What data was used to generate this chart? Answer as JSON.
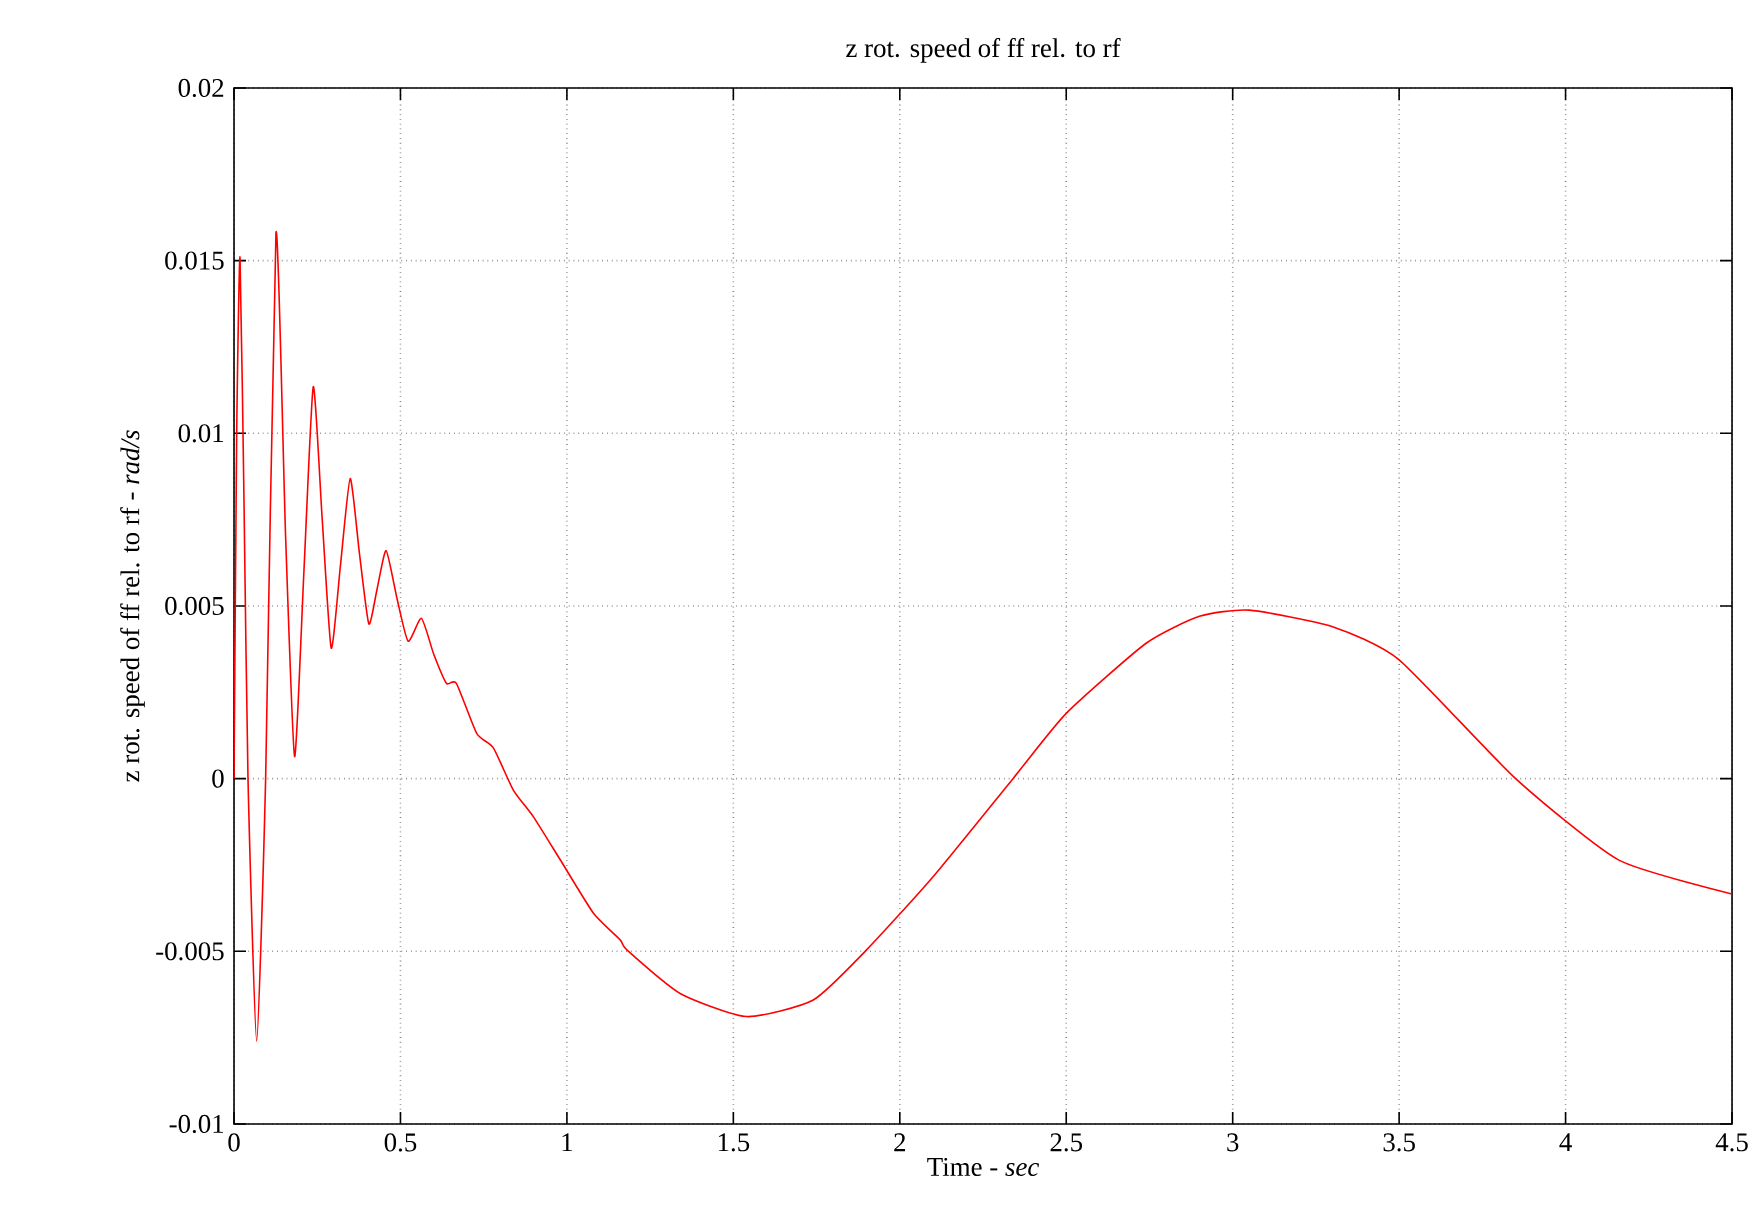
{
  "chart_data": {
    "type": "line",
    "title": "z rot. speed of ff rel. to rf",
    "xlabel": "Time - *sec*",
    "ylabel": "z rot. speed of ff rel. to rf - *rad/s*",
    "xlim": [
      0,
      4.5
    ],
    "ylim": [
      -0.01,
      0.02
    ],
    "xticks": [
      0,
      0.5,
      1,
      1.5,
      2,
      2.5,
      3,
      3.5,
      4,
      4.5
    ],
    "yticks": [
      -0.01,
      -0.005,
      0,
      0.005,
      0.01,
      0.015,
      0.02
    ],
    "grid": true,
    "line_style": "solid",
    "series": [
      {
        "color": "#ff0000",
        "x": [
          0,
          0.008,
          0.018,
          0.03,
          0.042,
          0.068,
          0.095,
          0.126,
          0.155,
          0.182,
          0.21,
          0.238,
          0.265,
          0.292,
          0.32,
          0.349,
          0.377,
          0.405,
          0.43,
          0.457,
          0.49,
          0.523,
          0.563,
          0.6,
          0.638,
          0.668,
          0.729,
          0.779,
          0.839,
          0.899,
          0.98,
          1.08,
          1.16,
          1.18,
          1.34,
          1.54,
          1.74,
          1.9,
          2.1,
          2.34,
          2.5,
          2.74,
          2.9,
          3.05,
          3.3,
          3.5,
          3.85,
          4.16,
          4.5
        ],
        "values": [
          0,
          0.01,
          0.0151,
          0.008,
          0,
          -0.0076,
          0,
          0.0158,
          0.007,
          0.00064,
          0.006,
          0.01135,
          0.0075,
          0.00378,
          0.0062,
          0.00869,
          0.0065,
          0.00448,
          0.0055,
          0.0066,
          0.0052,
          0.00398,
          0.00464,
          0.0036,
          0.00276,
          0.00276,
          0.00131,
          0.00089,
          -0.00033,
          -0.0011,
          -0.00235,
          -0.0039,
          -0.00467,
          -0.00496,
          -0.00622,
          -0.00689,
          -0.00641,
          -0.00496,
          -0.00284,
          0,
          0.00189,
          0.00392,
          0.0047,
          0.00488,
          0.0044,
          0.00344,
          0,
          -0.00236,
          -0.00334
        ]
      }
    ]
  }
}
